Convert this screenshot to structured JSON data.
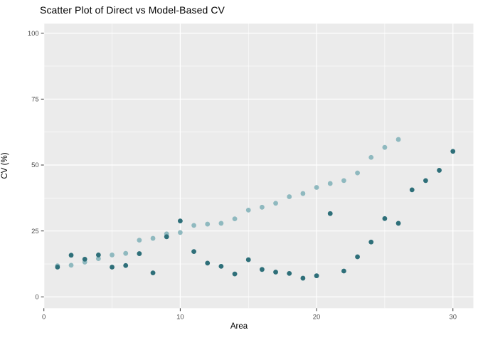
{
  "title": "Scatter Plot of Direct vs Model-Based CV",
  "axes": {
    "x_label": "Area",
    "y_label": "CV (%)",
    "x_tick_labels": [
      "0",
      "10",
      "20",
      "30"
    ],
    "y_tick_labels": [
      "0",
      "25",
      "50",
      "75",
      "100"
    ]
  },
  "colors": {
    "page_background": "#FFFFFF",
    "panel_background": "#EBEBEB",
    "gridline": "#FFFFFF",
    "tick_mark": "#333333",
    "tick_label_text": "#4D4D4D",
    "title_text": "#000000",
    "light_series_point": "#8FB9BF",
    "dark_series_point": "#2E6F79"
  },
  "chart_data": {
    "type": "scatter",
    "title": "Scatter Plot of Direct vs Model-Based CV",
    "xlabel": "Area",
    "ylabel": "CV (%)",
    "xlim": [
      0,
      31.5
    ],
    "ylim": [
      -4.3,
      103.6
    ],
    "x_major_ticks": [
      0,
      10,
      20,
      30
    ],
    "x_minor_gridlines": [
      5,
      15,
      25
    ],
    "y_major_ticks": [
      0,
      25,
      50,
      75,
      100
    ],
    "y_minor_gridlines": [
      12.5,
      37.5,
      62.5,
      87.5
    ],
    "grid": "white major and minor gridlines on gray panel",
    "legend_position": "none",
    "series": [
      {
        "name": "light-teal series",
        "color": "#8FB9BF",
        "x": [
          1,
          2,
          3,
          4,
          5,
          6,
          7,
          8,
          9,
          10,
          11,
          12,
          13,
          14,
          15,
          16,
          17,
          18,
          19,
          20,
          21,
          22,
          23,
          24,
          25,
          26
        ],
        "y": [
          11.8,
          12.0,
          13.2,
          14.5,
          15.9,
          16.5,
          21.5,
          22.2,
          23.9,
          24.4,
          27.1,
          27.6,
          27.9,
          29.6,
          32.9,
          34.0,
          35.5,
          38.0,
          39.2,
          41.5,
          43.0,
          44.1,
          47.0,
          52.9,
          56.7,
          59.7
        ]
      },
      {
        "name": "dark-teal series",
        "color": "#2E6F79",
        "x": [
          1,
          2,
          3,
          4,
          5,
          6,
          7,
          8,
          9,
          10,
          11,
          12,
          13,
          14,
          15,
          16,
          17,
          18,
          19,
          20,
          21,
          22,
          23,
          24,
          25,
          26,
          27,
          28,
          29,
          30
        ],
        "y": [
          11.3,
          15.8,
          14.3,
          15.9,
          11.3,
          11.9,
          16.4,
          9.1,
          22.8,
          28.8,
          17.2,
          12.8,
          11.6,
          8.7,
          14.1,
          10.4,
          9.4,
          8.9,
          7.1,
          8.0,
          31.6,
          9.8,
          15.2,
          20.8,
          29.7,
          27.9,
          40.6,
          44.1,
          48.0,
          55.2
        ]
      }
    ]
  }
}
